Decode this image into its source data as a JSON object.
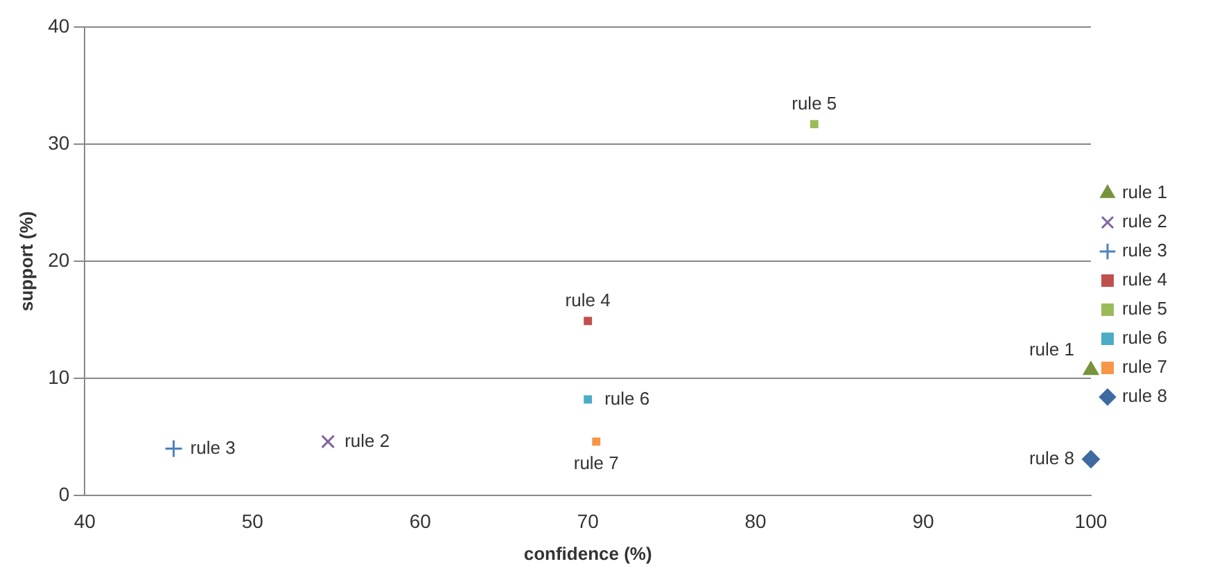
{
  "chart_data": {
    "type": "scatter",
    "xlabel": "confidence (%)",
    "ylabel": "support (%)",
    "xlim": [
      40,
      100
    ],
    "xticks": [
      40,
      50,
      60,
      70,
      80,
      90,
      100
    ],
    "ylim": [
      0,
      40
    ],
    "yticks": [
      0,
      10,
      20,
      30,
      40
    ],
    "grid": "y",
    "legend": "right",
    "series": [
      {
        "name": "rule 1",
        "color": "#77933c",
        "marker": "triangle",
        "x": [
          100
        ],
        "values": [
          10.7
        ]
      },
      {
        "name": "rule 2",
        "color": "#8064a2",
        "marker": "cross",
        "x": [
          54.5
        ],
        "values": [
          4.6
        ]
      },
      {
        "name": "rule 3",
        "color": "#4f81bd",
        "marker": "plus",
        "x": [
          45.3
        ],
        "values": [
          4
        ]
      },
      {
        "name": "rule 4",
        "color": "#c0504d",
        "marker": "square",
        "x": [
          70
        ],
        "values": [
          14.9
        ]
      },
      {
        "name": "rule 5",
        "color": "#9bbb59",
        "marker": "square",
        "x": [
          83.5
        ],
        "values": [
          31.7
        ]
      },
      {
        "name": "rule 6",
        "color": "#4bacc6",
        "marker": "square",
        "x": [
          70
        ],
        "values": [
          8.2
        ]
      },
      {
        "name": "rule 7",
        "color": "#f79646",
        "marker": "square",
        "x": [
          70.5
        ],
        "values": [
          4.6
        ]
      },
      {
        "name": "rule 8",
        "color": "#3e6aa0",
        "marker": "diamond",
        "x": [
          100
        ],
        "values": [
          3.1
        ]
      }
    ]
  }
}
